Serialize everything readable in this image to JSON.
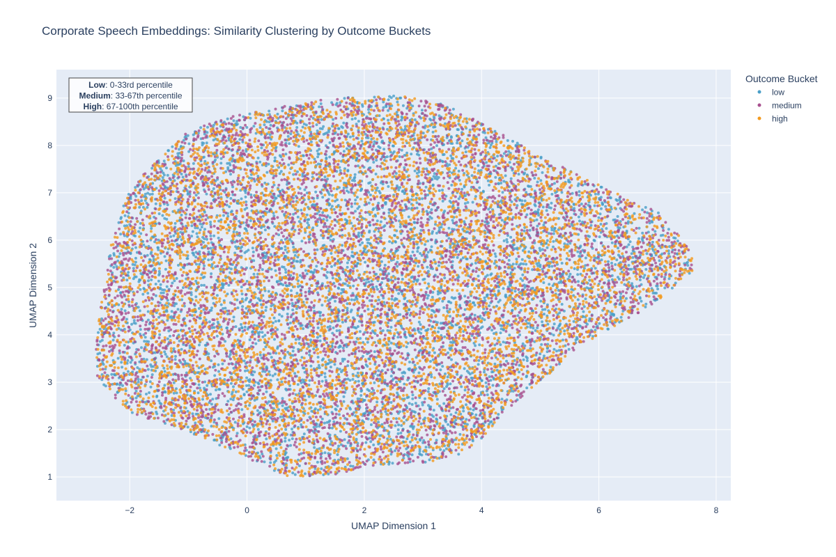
{
  "chart_data": {
    "type": "scatter",
    "title": "Corporate Speech Embeddings: Similarity Clustering by Outcome Buckets",
    "xlabel": "UMAP Dimension 1",
    "ylabel": "UMAP Dimension 2",
    "xlim": [
      -3.25,
      8.25
    ],
    "ylim": [
      0.5,
      9.6
    ],
    "xticks": [
      -2,
      0,
      2,
      4,
      6,
      8
    ],
    "xtick_labels": [
      "−2",
      "0",
      "2",
      "4",
      "6",
      "8"
    ],
    "yticks": [
      1,
      2,
      3,
      4,
      5,
      6,
      7,
      8,
      9
    ],
    "ytick_labels": [
      "1",
      "2",
      "3",
      "4",
      "5",
      "6",
      "7",
      "8",
      "9"
    ],
    "grid": true,
    "legend": {
      "title": "Outcome Bucket",
      "placement": "right"
    },
    "annotation": {
      "lines": [
        {
          "bold": "Low",
          "rest": ": 0-33rd percentile"
        },
        {
          "bold": "Medium",
          "rest": ": 33-67th percentile"
        },
        {
          "bold": "High",
          "rest": ": 67-100th percentile"
        }
      ],
      "placement": "top-left"
    },
    "cloud_outline": [
      [
        -2.6,
        3.4
      ],
      [
        -2.5,
        4.6
      ],
      [
        -2.3,
        6.0
      ],
      [
        -2.0,
        7.1
      ],
      [
        -1.6,
        7.6
      ],
      [
        -1.0,
        8.3
      ],
      [
        -0.3,
        8.6
      ],
      [
        0.5,
        8.8
      ],
      [
        1.2,
        8.95
      ],
      [
        2.0,
        9.05
      ],
      [
        2.7,
        9.05
      ],
      [
        3.3,
        8.9
      ],
      [
        3.8,
        8.6
      ],
      [
        4.4,
        8.2
      ],
      [
        5.0,
        7.8
      ],
      [
        5.6,
        7.4
      ],
      [
        6.3,
        7.0
      ],
      [
        7.0,
        6.6
      ],
      [
        7.5,
        5.9
      ],
      [
        7.65,
        5.4
      ],
      [
        7.4,
        5.1
      ],
      [
        7.0,
        4.7
      ],
      [
        6.3,
        4.2
      ],
      [
        5.6,
        3.7
      ],
      [
        5.0,
        3.0
      ],
      [
        4.4,
        2.4
      ],
      [
        4.0,
        1.8
      ],
      [
        3.6,
        1.45
      ],
      [
        3.0,
        1.3
      ],
      [
        2.2,
        1.25
      ],
      [
        1.5,
        1.05
      ],
      [
        0.7,
        1.0
      ],
      [
        0.0,
        1.4
      ],
      [
        -0.6,
        1.75
      ],
      [
        -1.3,
        2.1
      ],
      [
        -1.9,
        2.3
      ],
      [
        -2.3,
        2.7
      ],
      [
        -2.55,
        3.1
      ]
    ],
    "series": [
      {
        "name": "low",
        "color": "#4a9fc8",
        "count": 5200,
        "seed": 11
      },
      {
        "name": "medium",
        "color": "#a8508f",
        "count": 5200,
        "seed": 23
      },
      {
        "name": "high",
        "color": "#f39a1e",
        "count": 5200,
        "seed": 37
      }
    ]
  }
}
